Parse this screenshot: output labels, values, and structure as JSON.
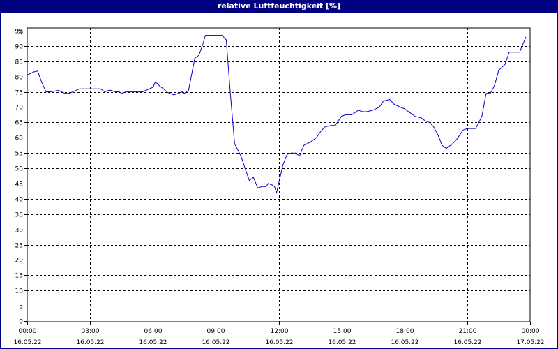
{
  "window": {
    "title": "relative Luftfeuchtigkeit [%]"
  },
  "colors": {
    "title_bar": "#000080",
    "series": "#0000cc",
    "grid": "#000000",
    "background": "#ffffff"
  },
  "chart_data": {
    "type": "line",
    "title": "relative Luftfeuchtigkeit [%]",
    "ylabel": "%",
    "xlabel": "",
    "ylim": [
      0,
      95
    ],
    "ytick_step": 5,
    "xlim": [
      0,
      24
    ],
    "xticks": [
      {
        "time": "00:00",
        "date": "16.05.22",
        "hour": 0
      },
      {
        "time": "03:00",
        "date": "16.05.22",
        "hour": 3
      },
      {
        "time": "06:00",
        "date": "16.05.22",
        "hour": 6
      },
      {
        "time": "09:00",
        "date": "16.05.22",
        "hour": 9
      },
      {
        "time": "12:00",
        "date": "16.05.22",
        "hour": 12
      },
      {
        "time": "15:00",
        "date": "16.05.22",
        "hour": 15
      },
      {
        "time": "18:00",
        "date": "16.05.22",
        "hour": 18
      },
      {
        "time": "21:00",
        "date": "16.05.22",
        "hour": 21
      },
      {
        "time": "00:00",
        "date": "17.05.22",
        "hour": 24
      }
    ],
    "grid": true,
    "legend": "none",
    "series": [
      {
        "x": [
          0,
          0.3,
          0.5,
          0.7,
          0.9,
          1.0,
          1.1,
          1.5,
          1.7,
          1.8,
          2.0,
          2.5,
          2.7,
          2.9,
          3.5,
          3.7,
          3.9,
          4.0,
          4.2,
          4.4,
          4.5,
          4.7,
          5.0,
          5.2,
          5.5,
          6.0,
          6.1,
          6.2,
          6.3,
          6.5,
          6.7,
          7.0,
          7.2,
          7.4,
          7.5,
          7.7,
          7.8,
          8.0,
          8.2,
          8.4,
          8.5,
          8.7,
          9.0,
          9.3,
          9.5,
          9.7,
          9.9,
          10.2,
          10.4,
          10.6,
          10.8,
          11.0,
          11.2,
          11.4,
          11.5,
          11.7,
          11.8,
          11.9,
          12.0,
          12.2,
          12.4,
          12.6,
          12.8,
          13.0,
          13.2,
          13.5,
          13.8,
          14.0,
          14.2,
          14.5,
          14.7,
          15.0,
          15.2,
          15.5,
          15.8,
          16.0,
          16.2,
          16.5,
          16.8,
          17.0,
          17.3,
          17.5,
          17.8,
          18.0,
          18.3,
          18.5,
          18.8,
          19.0,
          19.2,
          19.4,
          19.6,
          19.8,
          20.0,
          20.3,
          20.5,
          20.8,
          21.0,
          21.2,
          21.4,
          21.7,
          21.9,
          22.1,
          22.3,
          22.5,
          22.8,
          23.0,
          23.2,
          23.5,
          23.8
        ],
        "y": [
          80.5,
          81.5,
          81.8,
          78,
          75,
          75,
          75,
          75.5,
          74.8,
          74.5,
          74.5,
          76,
          76,
          76,
          76,
          75,
          75.5,
          75.5,
          75,
          75,
          74.5,
          75,
          75,
          75,
          75,
          76.5,
          78,
          77.8,
          77,
          76,
          74.8,
          74,
          74.5,
          75,
          74.5,
          75.5,
          79,
          86,
          87,
          91,
          93.5,
          93.5,
          93.5,
          93.5,
          92,
          74,
          58,
          54,
          50,
          46,
          47,
          43.5,
          44,
          44,
          45,
          44.5,
          44,
          42,
          45,
          51,
          54.5,
          55,
          55,
          54,
          57.5,
          58.5,
          60,
          62,
          63.5,
          64,
          64,
          67,
          67.5,
          67.5,
          69,
          68.5,
          68.5,
          69,
          70,
          72,
          72.5,
          71,
          70,
          69.5,
          68,
          67,
          66.5,
          65.5,
          65,
          63.5,
          61,
          57.5,
          56.5,
          58,
          59.5,
          62.5,
          63,
          63,
          63,
          67,
          74.5,
          74.5,
          77,
          82,
          84,
          88,
          88,
          88,
          93
        ]
      }
    ]
  }
}
